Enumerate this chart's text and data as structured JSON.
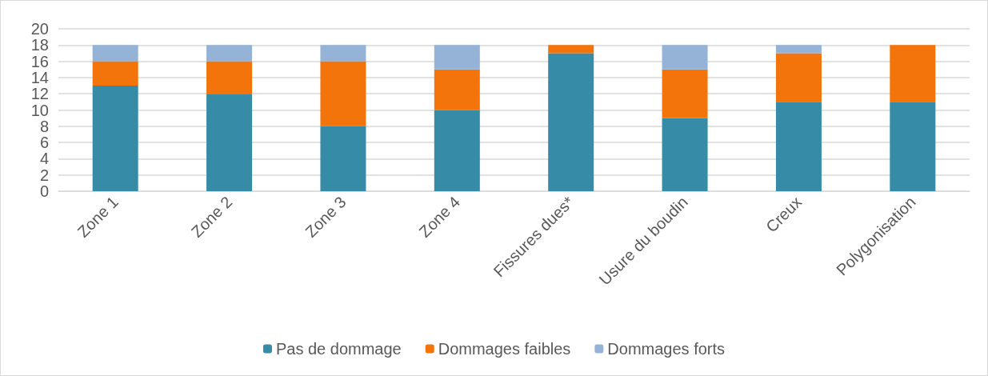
{
  "chart_data": {
    "type": "bar",
    "stacked": true,
    "categories": [
      "Zone 1",
      "Zone 2",
      "Zone 3",
      "Zone 4",
      "Fissures dues*",
      "Usure du boudin",
      "Creux",
      "Polygonisation"
    ],
    "series": [
      {
        "name": "Pas de dommage",
        "color": "#368ca6",
        "values": [
          13,
          12,
          8,
          10,
          17,
          9,
          11,
          11
        ]
      },
      {
        "name": "Dommages faibles",
        "color": "#f2740b",
        "values": [
          3,
          4,
          8,
          5,
          1,
          6,
          6,
          7
        ]
      },
      {
        "name": "Dommages forts",
        "color": "#95b3d7",
        "values": [
          2,
          2,
          2,
          3,
          0,
          3,
          1,
          0
        ]
      }
    ],
    "ylim": [
      0,
      20
    ],
    "yticks": [
      0,
      2,
      4,
      6,
      8,
      10,
      12,
      14,
      16,
      18,
      20
    ],
    "grid": "y",
    "legend": "bottom"
  }
}
